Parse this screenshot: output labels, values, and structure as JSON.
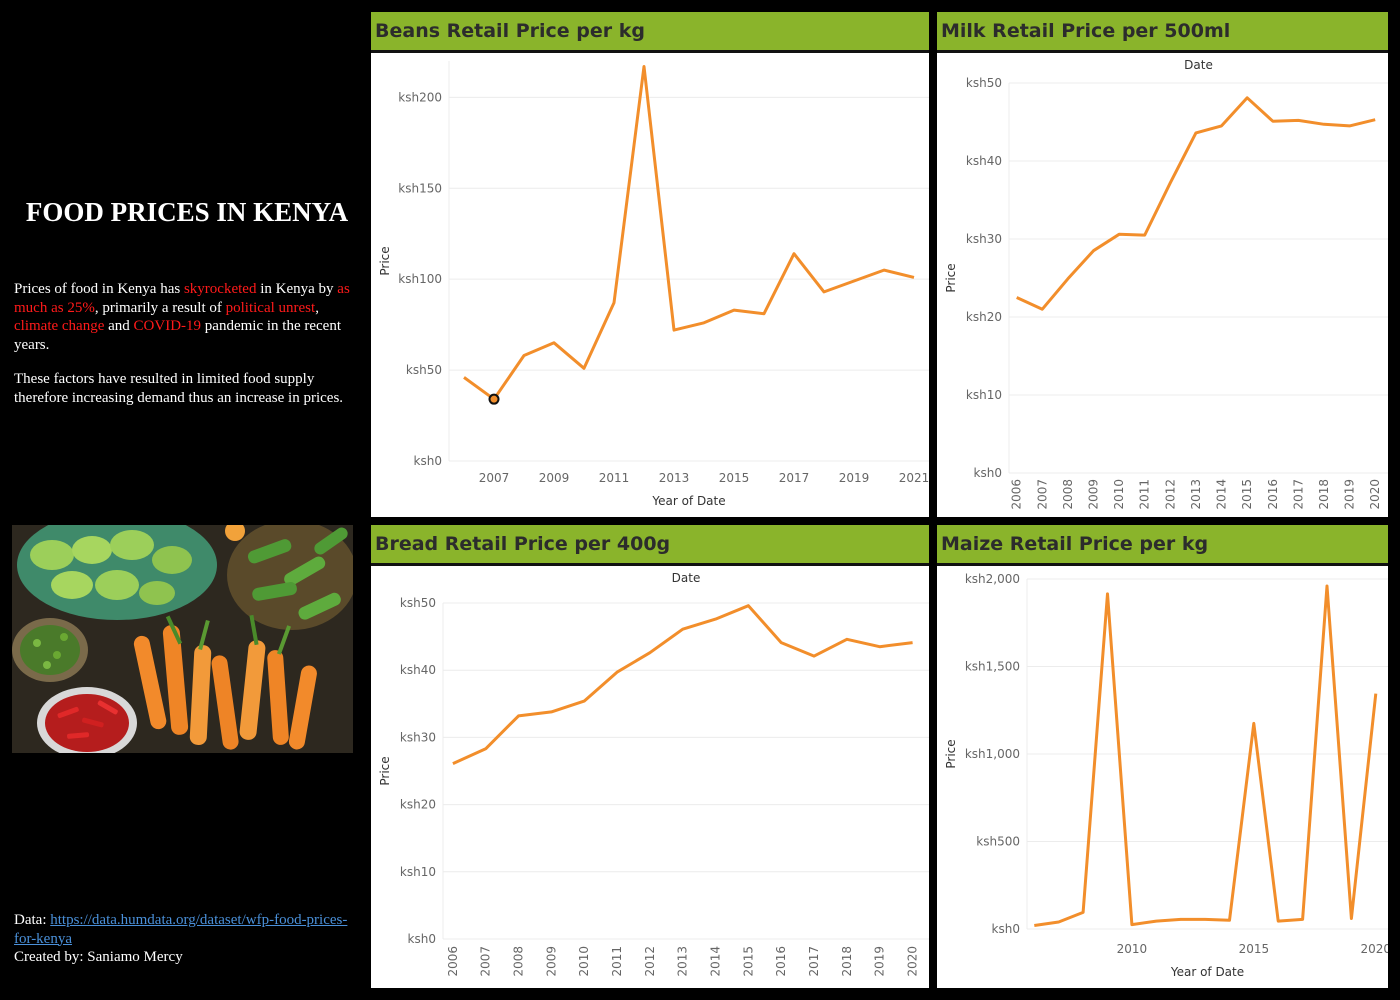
{
  "dashboard": {
    "title": "FOOD PRICES IN KENYA",
    "p1": {
      "t1": "Prices of food in Kenya has ",
      "r1": "skyrocketed",
      "t2": " in Kenya by ",
      "r2": "as much as 25%",
      "t3": ", primarily a result of ",
      "r3": "political unrest",
      "t4": ", ",
      "r4": "climate change",
      "t5": " and ",
      "r5": "COVID-19",
      "t6": " pandemic in the recent years."
    },
    "p2": "These factors have resulted in limited food supply therefore increasing demand thus an increase in prices.",
    "data_label": "Data: ",
    "data_link": "https://data.humdata.org/dataset/wfp-food-prices-for-kenya",
    "created_by": "Created by: Saniamo Mercy",
    "colors": {
      "accent": "#8ab42b",
      "line": "#f28e2b",
      "highlight": "#ff1a1a",
      "link": "#4a90d9"
    },
    "photo_description": "vegetables-photo"
  },
  "chart_data": [
    {
      "id": "beans",
      "type": "line",
      "title": "Beans Retail Price per kg",
      "top_label": "",
      "xlabel": "Year of Date",
      "ylabel": "Price",
      "x": [
        2006,
        2007,
        2008,
        2009,
        2010,
        2011,
        2012,
        2013,
        2014,
        2015,
        2016,
        2017,
        2018,
        2019,
        2020,
        2021
      ],
      "values": [
        46,
        34,
        58,
        65,
        51,
        87,
        217,
        72,
        76,
        83,
        81,
        114,
        93,
        99,
        105,
        101
      ],
      "highlight_point": 2007,
      "ylim": [
        0,
        220
      ],
      "yticks": [
        0,
        50,
        100,
        150,
        200
      ],
      "ytick_labels": [
        "ksh0",
        "ksh50",
        "ksh100",
        "ksh150",
        "ksh200"
      ],
      "xticks": [
        "2007",
        "2009",
        "2011",
        "2013",
        "2015",
        "2017",
        "2019",
        "2021"
      ],
      "grid": true
    },
    {
      "id": "milk",
      "type": "line",
      "title": "Milk Retail Price per 500ml",
      "top_label": "Date",
      "xlabel": "",
      "ylabel": "Price",
      "x": [
        2006,
        2007,
        2008,
        2009,
        2010,
        2011,
        2012,
        2013,
        2014,
        2015,
        2016,
        2017,
        2018,
        2019,
        2020
      ],
      "values": [
        22.5,
        21,
        24.9,
        28.5,
        30.6,
        30.5,
        37.2,
        43.6,
        44.5,
        48.1,
        45.1,
        45.2,
        44.7,
        44.5,
        45.3
      ],
      "ylim": [
        0,
        50
      ],
      "yticks": [
        0,
        10,
        20,
        30,
        40,
        50
      ],
      "ytick_labels": [
        "ksh0",
        "ksh10",
        "ksh20",
        "ksh30",
        "ksh40",
        "ksh50"
      ],
      "xticks": [
        "2006",
        "2007",
        "2008",
        "2009",
        "2010",
        "2011",
        "2012",
        "2013",
        "2014",
        "2015",
        "2016",
        "2017",
        "2018",
        "2019",
        "2020"
      ],
      "grid": true
    },
    {
      "id": "bread",
      "type": "line",
      "title": "Bread Retail Price per 400g",
      "top_label": "Date",
      "xlabel": "",
      "ylabel": "Price",
      "x": [
        2006,
        2007,
        2008,
        2009,
        2010,
        2011,
        2012,
        2013,
        2014,
        2015,
        2016,
        2017,
        2018,
        2019,
        2020
      ],
      "values": [
        26.1,
        28.3,
        33.2,
        33.8,
        35.4,
        39.7,
        42.6,
        46.1,
        47.6,
        49.6,
        44.1,
        42.1,
        44.6,
        43.5,
        44.1
      ],
      "ylim": [
        0,
        50
      ],
      "yticks": [
        0,
        10,
        20,
        30,
        40,
        50
      ],
      "ytick_labels": [
        "ksh0",
        "ksh10",
        "ksh20",
        "ksh30",
        "ksh40",
        "ksh50"
      ],
      "xticks": [
        "2006",
        "2007",
        "2008",
        "2009",
        "2010",
        "2011",
        "2012",
        "2013",
        "2014",
        "2015",
        "2016",
        "2017",
        "2018",
        "2019",
        "2020"
      ],
      "grid": true
    },
    {
      "id": "maize",
      "type": "line",
      "title": "Maize Retail Price per kg",
      "top_label": "",
      "xlabel": "Year of Date",
      "ylabel": "Price",
      "x": [
        2006,
        2007,
        2008,
        2009,
        2010,
        2011,
        2012,
        2013,
        2014,
        2015,
        2016,
        2017,
        2018,
        2019,
        2020
      ],
      "values": [
        20,
        40,
        95,
        1915,
        25,
        45,
        55,
        55,
        50,
        1175,
        45,
        55,
        1960,
        60,
        1345
      ],
      "ylim": [
        0,
        2000
      ],
      "yticks": [
        0,
        500,
        1000,
        1500,
        2000
      ],
      "ytick_labels": [
        "ksh0",
        "ksh500",
        "ksh1,000",
        "ksh1,500",
        "ksh2,000"
      ],
      "xticks": [
        "2010",
        "2015",
        "2020"
      ],
      "grid": true
    }
  ]
}
